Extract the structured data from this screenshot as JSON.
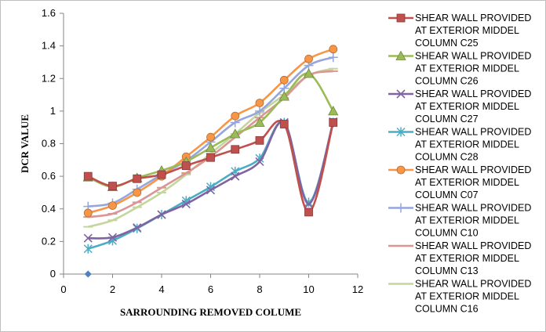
{
  "chart_data": {
    "type": "line",
    "title": "",
    "xlabel": "SARROUNDING REMOVED COLUME",
    "ylabel": "DCR VALUE",
    "xlim": [
      0,
      12
    ],
    "ylim": [
      0,
      1.6
    ],
    "xticks": [
      0,
      2,
      4,
      6,
      8,
      10,
      12
    ],
    "yticks": [
      0,
      0.2,
      0.4,
      0.6,
      0.8,
      1,
      1.2,
      1.4,
      1.6
    ],
    "xtick_labels": [
      "0",
      "2",
      "4",
      "6",
      "8",
      "10",
      "12"
    ],
    "ytick_labels": [
      "0",
      "0.2",
      "0.4",
      "0.6",
      "0.8",
      "1",
      "1.2",
      "1.4",
      "1.6"
    ],
    "grid": false,
    "legend_position": "right",
    "x": [
      1,
      2,
      3,
      4,
      5,
      6,
      7,
      8,
      9,
      10,
      11
    ],
    "series": [
      {
        "name": "SHEAR WALL PROVIDED AT EXTERIOR MIDDEL COLUMN  C25",
        "legend_lines": [
          "SHEAR WALL PROVIDED",
          "AT EXTERIOR MIDDEL",
          "COLUMN  C25"
        ],
        "color": "#C0504D",
        "marker": "square",
        "values": [
          0.6,
          0.54,
          0.585,
          0.61,
          0.665,
          0.715,
          0.765,
          0.82,
          0.92,
          0.38,
          0.93
        ]
      },
      {
        "name": "SHEAR WALL PROVIDED AT EXTERIOR MIDDEL COLUMN  C26",
        "legend_lines": [
          "SHEAR WALL PROVIDED",
          "AT EXTERIOR MIDDEL",
          "COLUMN  C26"
        ],
        "color": "#9BBB59",
        "marker": "triangle",
        "values": [
          0.595,
          0.535,
          0.59,
          0.635,
          0.69,
          0.775,
          0.86,
          0.93,
          1.09,
          1.23,
          1.0
        ]
      },
      {
        "name": "SHEAR WALL PROVIDED AT EXTERIOR MIDDEL COLUMN  C27",
        "legend_lines": [
          "SHEAR WALL PROVIDED",
          "AT EXTERIOR MIDDEL",
          "COLUMN  C27"
        ],
        "color": "#8064A2",
        "marker": "x",
        "values": [
          0.22,
          0.225,
          0.285,
          0.365,
          0.43,
          0.515,
          0.6,
          0.69,
          0.93,
          0.43,
          0.935
        ]
      },
      {
        "name": "SHEAR WALL PROVIDED AT EXTERIOR MIDDEL COLUMN  C28",
        "legend_lines": [
          "SHEAR WALL PROVIDED",
          "AT EXTERIOR MIDDEL",
          "COLUMN  C28"
        ],
        "color": "#4BACC6",
        "marker": "star",
        "values": [
          0.155,
          0.205,
          0.28,
          0.365,
          0.45,
          0.535,
          0.63,
          0.71,
          0.93,
          0.44,
          0.93
        ]
      },
      {
        "name": "SHEAR WALL PROVIDED AT EXTERIOR MIDDEL COLUMN  C07",
        "legend_lines": [
          "SHEAR WALL PROVIDED",
          "AT EXTERIOR MIDDEL",
          "COLUMN  C07"
        ],
        "color": "#F79646",
        "marker": "circle",
        "values": [
          0.375,
          0.42,
          0.5,
          0.6,
          0.72,
          0.84,
          0.97,
          1.05,
          1.19,
          1.32,
          1.38
        ]
      },
      {
        "name": "SHEAR WALL PROVIDED AT EXTERIOR MIDDEL COLUMN  C10",
        "legend_lines": [
          "SHEAR WALL PROVIDED",
          "AT EXTERIOR MIDDEL",
          "COLUMN  C10"
        ],
        "color": "#95A6DE",
        "marker": "plus",
        "values": [
          0.415,
          0.435,
          0.52,
          0.61,
          0.695,
          0.81,
          0.93,
          1.0,
          1.14,
          1.28,
          1.33
        ]
      },
      {
        "name": "SHEAR WALL PROVIDED AT EXTERIOR MIDDEL COLUMN  C13",
        "legend_lines": [
          "SHEAR WALL PROVIDED",
          "AT EXTERIOR MIDDEL",
          "COLUMN  C13"
        ],
        "color": "#D99694",
        "marker": "dash",
        "values": [
          0.35,
          0.37,
          0.44,
          0.53,
          0.62,
          0.72,
          0.84,
          0.96,
          1.08,
          1.22,
          1.245
        ]
      },
      {
        "name": "SHEAR WALL PROVIDED AT EXTERIOR MIDDEL COLUMN  C16",
        "legend_lines": [
          "SHEAR WALL PROVIDED",
          "AT EXTERIOR MIDDEL",
          "COLUMN  C16"
        ],
        "color": "#C3D69B",
        "marker": "dash",
        "values": [
          0.29,
          0.33,
          0.41,
          0.5,
          0.61,
          0.74,
          0.86,
          0.99,
          1.1,
          1.22,
          1.26
        ]
      }
    ],
    "extra_points": [
      {
        "x": 1,
        "y": 0,
        "color": "#4F81BD",
        "marker": "diamond"
      }
    ]
  }
}
